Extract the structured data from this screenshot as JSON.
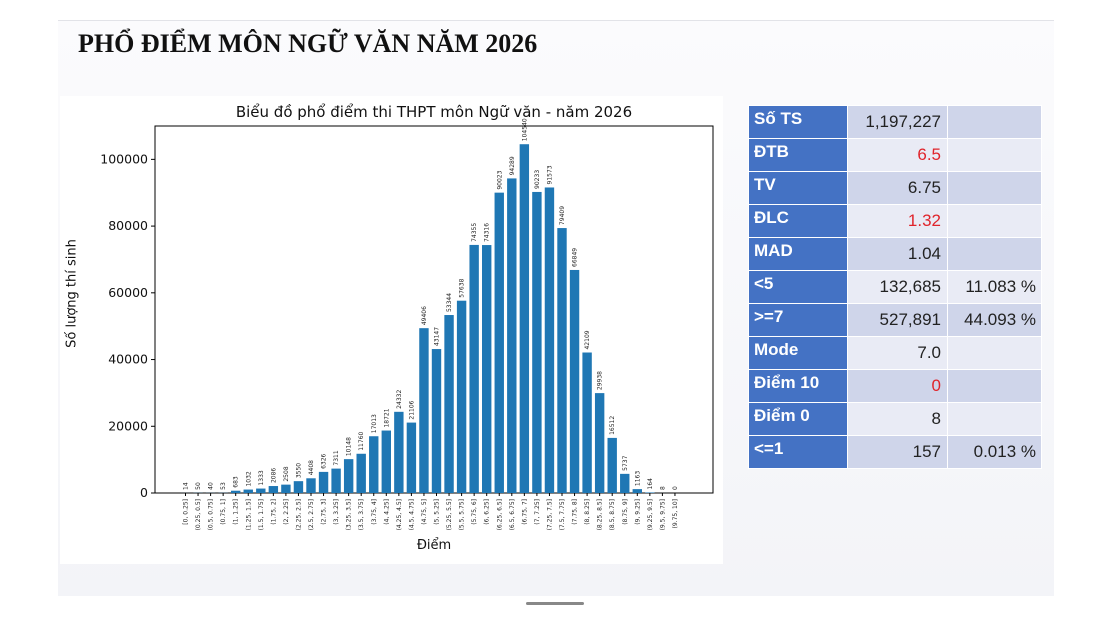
{
  "slide": {
    "title": "PHỔ ĐIỂM MÔN NGỮ VĂN NĂM 2026"
  },
  "colors": {
    "bar": "#1f77b4",
    "table_header": "#4472c4",
    "highlight": "#e0242b"
  },
  "chart_data": {
    "type": "bar",
    "title": "Biểu đồ phổ điểm thi THPT môn Ngữ văn - năm 2026",
    "xlabel": "Điểm",
    "ylabel": "Số lượng thí sinh",
    "ylim": [
      0,
      110000
    ],
    "yticks": [
      0,
      20000,
      40000,
      60000,
      80000,
      100000
    ],
    "categories": [
      "[0, 0.25]",
      "(0.25, 0.5]",
      "(0.5, 0.75]",
      "(0.75, 1]",
      "(1, 1.25]",
      "(1.25, 1.5]",
      "(1.5, 1.75]",
      "(1.75, 2]",
      "(2, 2.25]",
      "(2.25, 2.5]",
      "(2.5, 2.75]",
      "(2.75, 3]",
      "(3, 3.25]",
      "(3.25, 3.5]",
      "(3.5, 3.75]",
      "(3.75, 4]",
      "(4, 4.25]",
      "(4.25, 4.5]",
      "(4.5, 4.75]",
      "(4.75, 5]",
      "(5, 5.25]",
      "(5.25, 5.5]",
      "(5.5, 5.75]",
      "(5.75, 6]",
      "(6, 6.25]",
      "(6.25, 6.5]",
      "(6.5, 6.75]",
      "(6.75, 7]",
      "(7, 7.25]",
      "(7.25, 7.5]",
      "(7.5, 7.75]",
      "(7.75, 8]",
      "(8, 8.25]",
      "(8.25, 8.5]",
      "(8.5, 8.75]",
      "(8.75, 9]",
      "(9, 9.25]",
      "(9.25, 9.5]",
      "(9.5, 9.75]",
      "(9.75, 10]"
    ],
    "values": [
      14,
      50,
      40,
      53,
      683,
      1032,
      1333,
      2086,
      2508,
      3550,
      4408,
      6326,
      7311,
      10148,
      11760,
      17013,
      18721,
      24332,
      21106,
      49406,
      43147,
      53344,
      57638,
      74355,
      74316,
      90023,
      94289,
      104540,
      90233,
      91573,
      79409,
      66849,
      42109,
      29938,
      16512,
      5737,
      1163,
      164,
      8,
      0
    ],
    "grid": false,
    "legend": "none"
  },
  "stats": [
    {
      "label": "Số TS",
      "value": "1,197,227",
      "extra": ""
    },
    {
      "label": "ĐTB",
      "value": "6.5",
      "extra": "",
      "highlight": true
    },
    {
      "label": "TV",
      "value": "6.75",
      "extra": ""
    },
    {
      "label": "ĐLC",
      "value": "1.32",
      "extra": "",
      "highlight": true
    },
    {
      "label": "MAD",
      "value": "1.04",
      "extra": ""
    },
    {
      "label": "<5",
      "value": "132,685",
      "extra": "11.083 %"
    },
    {
      "label": ">=7",
      "value": "527,891",
      "extra": "44.093 %"
    },
    {
      "label": "Mode",
      "value": "7.0",
      "extra": ""
    },
    {
      "label": "Điểm 10",
      "value": "0",
      "extra": "",
      "highlight": true
    },
    {
      "label": "Điểm 0",
      "value": "8",
      "extra": ""
    },
    {
      "label": "<=1",
      "value": "157",
      "extra": "0.013 %"
    }
  ]
}
